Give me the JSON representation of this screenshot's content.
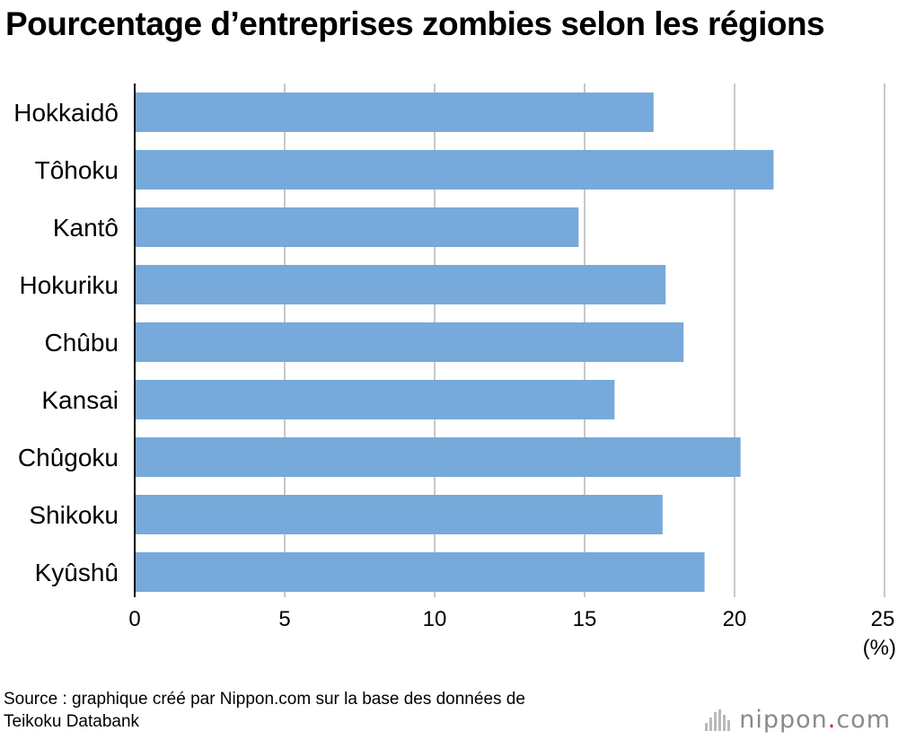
{
  "title": "Pourcentage d’entreprises zombies selon les régions",
  "source_line1": "Source : graphique créé par Nippon.com sur la base des données de",
  "source_line2": "Teikoku Databank",
  "logo": {
    "before_dot": "nippon",
    "dot": ".",
    "after_dot": "com",
    "icon": "nippon-bars-icon"
  },
  "colors": {
    "bar": "#77a9da",
    "grid": "#c8c8c8",
    "axis": "#000000",
    "logo_dot": "#e0002b"
  },
  "chart_data": {
    "type": "bar",
    "orientation": "horizontal",
    "categories": [
      "Hokkaidô",
      "Tôhoku",
      "Kantô",
      "Hokuriku",
      "Chûbu",
      "Kansai",
      "Chûgoku",
      "Shikoku",
      "Kyûshû"
    ],
    "values": [
      17.3,
      21.3,
      14.8,
      17.7,
      18.3,
      16.0,
      20.2,
      17.6,
      19.0
    ],
    "xlim": [
      0,
      25
    ],
    "xticks": [
      0,
      5,
      10,
      15,
      20,
      25
    ],
    "xticklabels": [
      "0",
      "5",
      "10",
      "15",
      "20",
      "25"
    ],
    "unit_label": "(%)",
    "grid": true
  }
}
